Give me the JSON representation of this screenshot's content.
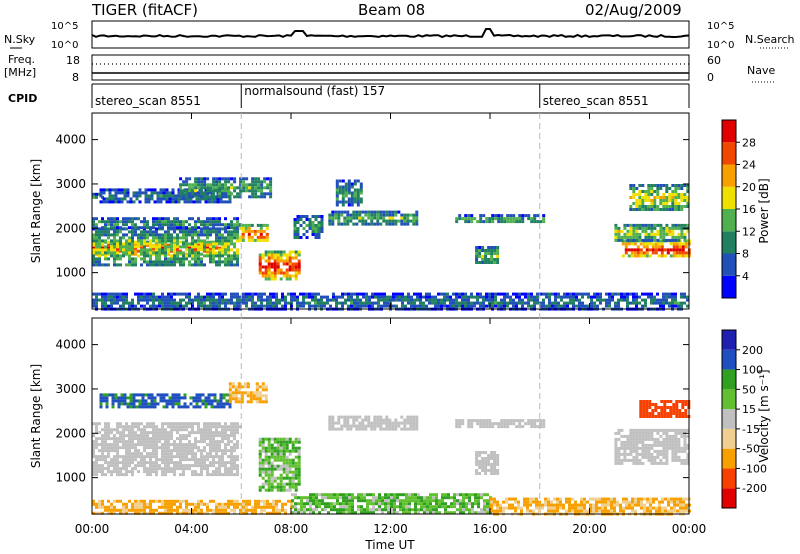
{
  "header": {
    "title": "TIGER (fitACF)",
    "beam": "Beam 08",
    "date": "02/Aug/2009"
  },
  "strip_sky": {
    "left_label": "N.Sky",
    "right_label": "N.Search",
    "ticks": [
      "10^5",
      "10^0"
    ]
  },
  "strip_freq": {
    "left_label_1": "Freq.",
    "left_label_2": "[MHz]",
    "right_label": "Nave",
    "left_ticks": [
      "18",
      "8"
    ],
    "right_ticks": [
      "60",
      "0"
    ]
  },
  "cpid": {
    "label": "CPID",
    "segments": [
      {
        "text": "stereo_scan 8551",
        "start_hour": 0,
        "end_hour": 6
      },
      {
        "text": "normalsound (fast) 157",
        "start_hour": 6,
        "end_hour": 18
      },
      {
        "text": "stereo_scan 8551",
        "start_hour": 18,
        "end_hour": 24
      }
    ]
  },
  "colors": {
    "power": [
      "#0000ff",
      "#2050b8",
      "#208060",
      "#50b050",
      "#f0e000",
      "#f8a000",
      "#f04800",
      "#e00000"
    ],
    "velocity": [
      "#e00000",
      "#f84000",
      "#f8a000",
      "#f0d090",
      "#c0c0c0",
      "#60c030",
      "#30a020",
      "#2050c0",
      "#2020b0"
    ]
  },
  "chart_data": [
    {
      "type": "heatmap",
      "name": "power",
      "ylabel": "Slant Range [km]",
      "xlim": [
        0,
        24
      ],
      "ylim": [
        180,
        4600
      ],
      "yticks": [
        1000,
        2000,
        3000,
        4000
      ],
      "colorbar": {
        "label": "Power [dB]",
        "min": 0,
        "max": 32,
        "ticks": [
          "4",
          "8",
          "12",
          "16",
          "20",
          "24",
          "28"
        ]
      },
      "bands": [
        {
          "t0": 0,
          "t1": 5.4,
          "r0": 1420,
          "r1": 1720,
          "value": 26
        },
        {
          "t0": 0,
          "t1": 5.8,
          "r0": 1150,
          "r1": 2020,
          "value": 14
        },
        {
          "t0": 0,
          "t1": 6,
          "r0": 2030,
          "r1": 2250,
          "value": 10
        },
        {
          "t0": 0,
          "t1": 0.4,
          "r0": 2600,
          "r1": 2800,
          "value": 10
        },
        {
          "t0": 0.3,
          "t1": 5.5,
          "r0": 2600,
          "r1": 2900,
          "value": 8
        },
        {
          "t0": 3.5,
          "t1": 7.2,
          "r0": 2700,
          "r1": 3150,
          "value": 12
        },
        {
          "t0": 5.9,
          "t1": 7.1,
          "r0": 1700,
          "r1": 2100,
          "value": 24
        },
        {
          "t0": 6.7,
          "t1": 8.3,
          "r0": 850,
          "r1": 1500,
          "value": 26
        },
        {
          "t0": 8.1,
          "t1": 9.2,
          "r0": 1800,
          "r1": 2300,
          "value": 10
        },
        {
          "t0": 9.5,
          "t1": 13,
          "r0": 2100,
          "r1": 2400,
          "value": 12
        },
        {
          "t0": 9.8,
          "t1": 10.8,
          "r0": 2500,
          "r1": 3100,
          "value": 10
        },
        {
          "t0": 14.6,
          "t1": 18.2,
          "r0": 2130,
          "r1": 2320,
          "value": 12
        },
        {
          "t0": 15.4,
          "t1": 16.3,
          "r0": 1200,
          "r1": 1600,
          "value": 12
        },
        {
          "t0": 21.3,
          "t1": 24,
          "r0": 1350,
          "r1": 1750,
          "value": 26
        },
        {
          "t0": 21.0,
          "t1": 24,
          "r0": 1750,
          "r1": 2100,
          "value": 16
        },
        {
          "t0": 21.6,
          "t1": 24,
          "r0": 2400,
          "r1": 3000,
          "value": 16
        },
        {
          "t0": 0,
          "t1": 24,
          "r0": 200,
          "r1": 550,
          "value": 8
        }
      ]
    },
    {
      "type": "heatmap",
      "name": "velocity",
      "xlabel": "Time UT",
      "ylabel": "Slant Range [km]",
      "xlim": [
        0,
        24
      ],
      "ylim": [
        180,
        4600
      ],
      "yticks": [
        1000,
        2000,
        3000,
        4000
      ],
      "xticks": [
        "00:00",
        "04:00",
        "08:00",
        "12:00",
        "16:00",
        "20:00",
        "00:00"
      ],
      "colorbar": {
        "label": "Velocity [m s⁻¹]",
        "ticks": [
          "200",
          "100",
          "50",
          "15",
          "-15",
          "-50",
          "-100",
          "-200"
        ]
      },
      "bands": [
        {
          "t0": 0,
          "t1": 5.8,
          "r0": 1100,
          "r1": 2050,
          "value": 0
        },
        {
          "t0": 0,
          "t1": 6,
          "r0": 2050,
          "r1": 2250,
          "value": 0
        },
        {
          "t0": 0.3,
          "t1": 5.5,
          "r0": 2600,
          "r1": 2900,
          "value": 120
        },
        {
          "t0": 5.5,
          "t1": 7.0,
          "r0": 2700,
          "r1": 3150,
          "value": -60
        },
        {
          "t0": 6.7,
          "t1": 8.3,
          "r0": 700,
          "r1": 1900,
          "value": 40
        },
        {
          "t0": 9.5,
          "t1": 13,
          "r0": 2100,
          "r1": 2400,
          "value": 0
        },
        {
          "t0": 14.6,
          "t1": 18.2,
          "r0": 2130,
          "r1": 2320,
          "value": 0
        },
        {
          "t0": 15.4,
          "t1": 16.3,
          "r0": 1100,
          "r1": 1600,
          "value": 0
        },
        {
          "t0": 21.0,
          "t1": 24,
          "r0": 1350,
          "r1": 2100,
          "value": 0
        },
        {
          "t0": 22.0,
          "t1": 24,
          "r0": 2350,
          "r1": 2750,
          "value": -160
        },
        {
          "t0": 0,
          "t1": 8,
          "r0": 200,
          "r1": 500,
          "value": -60
        },
        {
          "t0": 8,
          "t1": 16,
          "r0": 200,
          "r1": 650,
          "value": 40
        },
        {
          "t0": 16,
          "t1": 24,
          "r0": 200,
          "r1": 550,
          "value": -60
        }
      ]
    }
  ]
}
